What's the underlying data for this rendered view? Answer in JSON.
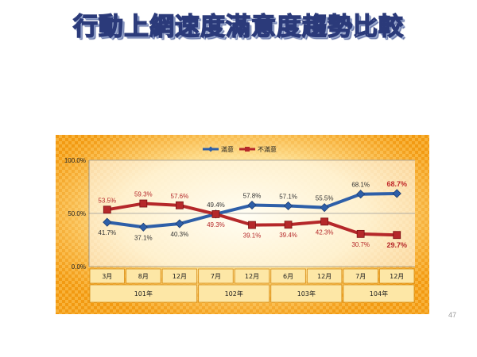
{
  "slide": {
    "title": "行動上網速度滿意度趨勢比較",
    "page_number": "47"
  },
  "colors": {
    "satisfied": "#2e5fa8",
    "dissatisfied": "#b5282a",
    "panel_orange": "#f5a623",
    "panel_light": "#fff3c4"
  },
  "chart_data": {
    "type": "line",
    "legend_position": "top-center",
    "ylim": [
      0,
      100
    ],
    "yticks": [
      "0.0%",
      "50.0%",
      "100.0%"
    ],
    "grid": true,
    "months": [
      "3月",
      "8月",
      "12月",
      "7月",
      "12月",
      "6月",
      "12月",
      "7月",
      "12月"
    ],
    "years": [
      {
        "label": "101年",
        "span": 3
      },
      {
        "label": "102年",
        "span": 2
      },
      {
        "label": "103年",
        "span": 2
      },
      {
        "label": "104年",
        "span": 2
      }
    ],
    "series": [
      {
        "name": "滿意",
        "color": "#2e5fa8",
        "marker": "diamond",
        "values": [
          41.7,
          37.1,
          40.3,
          49.4,
          57.8,
          57.1,
          55.5,
          68.1,
          68.7
        ],
        "labels": [
          "41.7%",
          "37.1%",
          "40.3%",
          "49.4%",
          "57.8%",
          "57.1%",
          "55.5%",
          "68.1%",
          "68.7%"
        ],
        "label_pos": [
          "below",
          "below",
          "below",
          "above",
          "above",
          "above",
          "above",
          "above",
          "above"
        ]
      },
      {
        "name": "不滿意",
        "color": "#b5282a",
        "marker": "square",
        "values": [
          53.5,
          59.3,
          57.6,
          49.3,
          39.1,
          39.4,
          42.3,
          30.7,
          29.7
        ],
        "labels": [
          "53.5%",
          "59.3%",
          "57.6%",
          "49.3%",
          "39.1%",
          "39.4%",
          "42.3%",
          "30.7%",
          "29.7%"
        ],
        "label_pos": [
          "above",
          "above",
          "above",
          "below",
          "below",
          "below",
          "below",
          "below",
          "below"
        ]
      }
    ]
  }
}
